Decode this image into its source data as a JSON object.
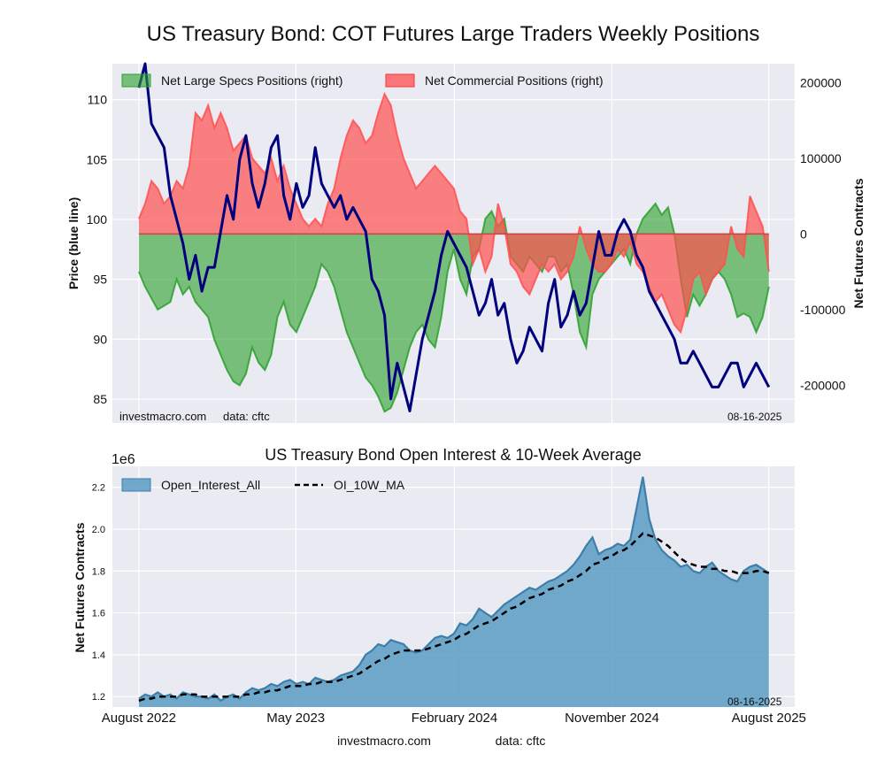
{
  "page": {
    "title": "US Treasury Bond: COT Futures Large Traders Weekly Positions",
    "footer_site": "investmacro.com",
    "footer_data": "data: cftc"
  },
  "chart_data": [
    {
      "type": "area",
      "panel": "top",
      "left_axis": {
        "label": "Price (blue line)",
        "range": [
          83,
          113
        ],
        "ticks": [
          85,
          90,
          95,
          100,
          105,
          110
        ]
      },
      "right_axis": {
        "label": "Net Futures Contracts",
        "range": [
          -250000,
          225000
        ],
        "ticks": [
          200000,
          100000,
          0,
          -100000,
          -200000
        ]
      },
      "x": {
        "start": "2022-08-16",
        "end": "2025-08-16",
        "range": [
          "2022-07-01",
          "2025-09-30"
        ]
      },
      "legend_placement": "top-left",
      "grid": true,
      "series": [
        {
          "name": "Net Large Specs Positions (right)",
          "kind": "area",
          "axis": "right",
          "color": "#2ca02c",
          "values": [
            -50000,
            -70000,
            -85000,
            -100000,
            -95000,
            -90000,
            -60000,
            -80000,
            -70000,
            -90000,
            -100000,
            -110000,
            -140000,
            -160000,
            -180000,
            -195000,
            -200000,
            -185000,
            -150000,
            -170000,
            -180000,
            -160000,
            -110000,
            -90000,
            -120000,
            -130000,
            -110000,
            -90000,
            -70000,
            -40000,
            -50000,
            -70000,
            -100000,
            -130000,
            -150000,
            -170000,
            -190000,
            -200000,
            -215000,
            -235000,
            -230000,
            -210000,
            -180000,
            -150000,
            -130000,
            -120000,
            -140000,
            -150000,
            -110000,
            -50000,
            -20000,
            -60000,
            -80000,
            -30000,
            -20000,
            20000,
            30000,
            10000,
            20000,
            -30000,
            -40000,
            -50000,
            -30000,
            -40000,
            -50000,
            -30000,
            -30000,
            -50000,
            -40000,
            -80000,
            -130000,
            -150000,
            -80000,
            -60000,
            -50000,
            -40000,
            -30000,
            -20000,
            -40000,
            0,
            20000,
            30000,
            40000,
            25000,
            35000,
            0,
            -60000,
            -110000,
            -80000,
            -95000,
            -80000,
            -60000,
            -50000,
            -60000,
            -80000,
            -110000,
            -105000,
            -110000,
            -130000,
            -110000,
            -70000
          ],
          "draw": "fill and border line"
        },
        {
          "name": "Net Commercial Positions (right)",
          "kind": "area",
          "axis": "right",
          "color": "#ff5050",
          "values": [
            20000,
            40000,
            70000,
            60000,
            40000,
            50000,
            70000,
            60000,
            90000,
            160000,
            150000,
            170000,
            140000,
            160000,
            140000,
            110000,
            120000,
            130000,
            100000,
            90000,
            80000,
            100000,
            70000,
            90000,
            60000,
            40000,
            20000,
            10000,
            20000,
            10000,
            40000,
            60000,
            100000,
            130000,
            150000,
            140000,
            120000,
            130000,
            160000,
            185000,
            170000,
            130000,
            100000,
            80000,
            60000,
            70000,
            80000,
            90000,
            80000,
            70000,
            60000,
            30000,
            20000,
            -40000,
            -20000,
            -50000,
            -30000,
            40000,
            10000,
            -40000,
            -50000,
            -70000,
            -80000,
            -60000,
            -40000,
            -50000,
            -40000,
            -60000,
            -50000,
            -30000,
            10000,
            -20000,
            -40000,
            -50000,
            -50000,
            -40000,
            -20000,
            -30000,
            -10000,
            -40000,
            -50000,
            -70000,
            -90000,
            -80000,
            -100000,
            -120000,
            -130000,
            -100000,
            -60000,
            -50000,
            -80000,
            -60000,
            -50000,
            -40000,
            10000,
            -20000,
            -30000,
            50000,
            30000,
            10000,
            -50000
          ]
        },
        {
          "name": "",
          "kind": "line",
          "axis": "left",
          "color": "#00007f",
          "values": [
            111,
            113,
            108,
            107,
            106,
            102,
            100,
            98,
            95,
            97,
            94,
            96,
            96,
            99,
            102,
            100,
            105,
            107,
            103,
            101,
            103,
            106,
            107,
            102,
            100,
            103,
            101,
            102,
            106,
            103,
            102,
            101,
            102,
            100,
            101,
            100,
            99,
            95,
            94,
            92,
            85,
            88,
            86,
            84,
            87,
            90,
            92,
            94,
            97,
            99,
            98,
            97,
            96,
            94,
            92,
            93,
            95,
            92,
            93,
            90,
            88,
            89,
            91,
            90,
            89,
            93,
            95,
            91,
            92,
            94,
            92,
            93,
            96,
            99,
            97,
            97,
            99,
            100,
            99,
            97,
            96,
            94,
            93,
            92,
            91,
            90,
            88,
            88,
            89,
            88,
            87,
            86,
            86,
            87,
            88,
            88,
            86,
            87,
            88,
            87,
            86
          ]
        }
      ],
      "annotations": [
        "investmacro.com",
        "data: cftc",
        "08-16-2025"
      ]
    },
    {
      "type": "area",
      "panel": "bottom",
      "title": "US Treasury Bond Open Interest & 10-Week Average",
      "y_multiplier": "1e6",
      "ylabel": "Net Futures Contracts",
      "ylim": [
        1.15,
        2.3
      ],
      "yticks": [
        "1.2",
        "1.4",
        "1.6",
        "1.8",
        "2.0",
        "2.2"
      ],
      "x": {
        "start": "2022-08-16",
        "end": "2025-08-16",
        "range": [
          "2022-07-01",
          "2025-09-30"
        ]
      },
      "xticks": [
        {
          "label": "August 2022",
          "date": "2022-08-16"
        },
        {
          "label": "May 2023",
          "date": "2023-05-16"
        },
        {
          "label": "February 2024",
          "date": "2024-02-16"
        },
        {
          "label": "November 2024",
          "date": "2024-11-16"
        },
        {
          "label": "August 2025",
          "date": "2025-08-16"
        }
      ],
      "legend_placement": "top-left",
      "grid": true,
      "series": [
        {
          "name": "Open_Interest_All",
          "kind": "area",
          "color": "#5b9cc4",
          "values": [
            1.19,
            1.21,
            1.2,
            1.22,
            1.2,
            1.21,
            1.19,
            1.22,
            1.21,
            1.2,
            1.2,
            1.19,
            1.21,
            1.18,
            1.2,
            1.21,
            1.19,
            1.22,
            1.24,
            1.23,
            1.24,
            1.26,
            1.25,
            1.27,
            1.28,
            1.26,
            1.27,
            1.26,
            1.29,
            1.28,
            1.27,
            1.28,
            1.3,
            1.31,
            1.32,
            1.35,
            1.4,
            1.42,
            1.45,
            1.44,
            1.47,
            1.46,
            1.45,
            1.42,
            1.41,
            1.42,
            1.45,
            1.48,
            1.49,
            1.48,
            1.5,
            1.55,
            1.54,
            1.57,
            1.62,
            1.6,
            1.58,
            1.61,
            1.64,
            1.66,
            1.68,
            1.7,
            1.72,
            1.71,
            1.73,
            1.75,
            1.76,
            1.78,
            1.8,
            1.83,
            1.87,
            1.92,
            1.96,
            1.88,
            1.9,
            1.91,
            1.93,
            1.92,
            1.95,
            2.1,
            2.25,
            2.05,
            1.95,
            1.9,
            1.87,
            1.85,
            1.82,
            1.83,
            1.8,
            1.79,
            1.82,
            1.84,
            1.8,
            1.78,
            1.76,
            1.75,
            1.8,
            1.82,
            1.83,
            1.81,
            1.79
          ]
        },
        {
          "name": "OI_10W_MA",
          "kind": "dashed-line",
          "color": "#000000",
          "values": [
            1.18,
            1.19,
            1.19,
            1.2,
            1.2,
            1.2,
            1.2,
            1.21,
            1.21,
            1.21,
            1.2,
            1.2,
            1.2,
            1.2,
            1.2,
            1.2,
            1.2,
            1.21,
            1.21,
            1.22,
            1.22,
            1.23,
            1.23,
            1.24,
            1.25,
            1.25,
            1.25,
            1.26,
            1.26,
            1.27,
            1.27,
            1.27,
            1.28,
            1.29,
            1.3,
            1.31,
            1.33,
            1.35,
            1.37,
            1.38,
            1.4,
            1.41,
            1.42,
            1.42,
            1.42,
            1.42,
            1.43,
            1.44,
            1.45,
            1.46,
            1.47,
            1.49,
            1.5,
            1.52,
            1.54,
            1.55,
            1.56,
            1.58,
            1.6,
            1.62,
            1.63,
            1.65,
            1.67,
            1.68,
            1.69,
            1.71,
            1.72,
            1.73,
            1.75,
            1.76,
            1.78,
            1.8,
            1.83,
            1.84,
            1.86,
            1.87,
            1.89,
            1.9,
            1.92,
            1.95,
            1.98,
            1.97,
            1.96,
            1.94,
            1.92,
            1.89,
            1.86,
            1.84,
            1.83,
            1.82,
            1.82,
            1.81,
            1.81,
            1.8,
            1.8,
            1.79,
            1.79,
            1.79,
            1.8,
            1.8,
            1.79
          ]
        }
      ],
      "annotations": [
        "08-16-2025"
      ]
    }
  ]
}
